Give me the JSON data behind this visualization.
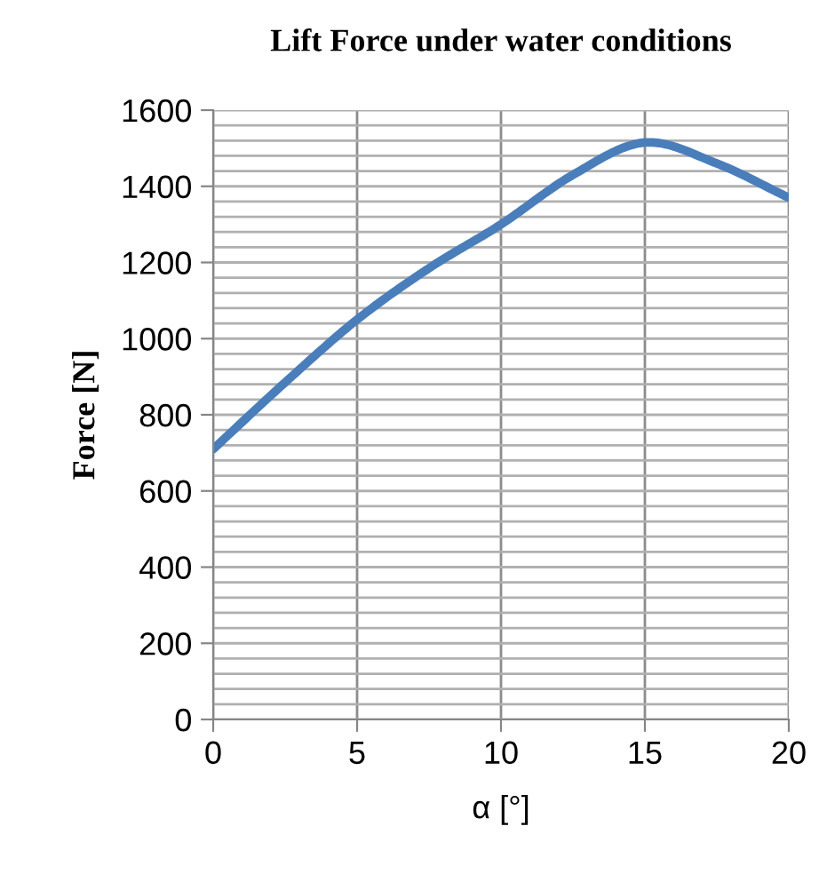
{
  "chart_data": {
    "type": "line",
    "title": "Lift Force under water conditions",
    "xlabel": "α [°]",
    "ylabel": "Force [N]",
    "x": [
      0,
      2.5,
      5,
      7.5,
      10,
      12.5,
      15,
      17.5,
      20
    ],
    "series": [
      {
        "color": "#4a7ebb",
        "values": [
          710,
          885,
          1050,
          1185,
          1300,
          1430,
          1515,
          1460,
          1370
        ]
      }
    ],
    "xlim": [
      0,
      20
    ],
    "xticks": [
      0,
      5,
      10,
      15,
      20
    ],
    "ylim": [
      0,
      1600
    ],
    "yticks": [
      0,
      200,
      400,
      600,
      800,
      1000,
      1200,
      1400,
      1600
    ],
    "grid": true,
    "marker": "none",
    "line_style": "solid",
    "legend": false
  }
}
